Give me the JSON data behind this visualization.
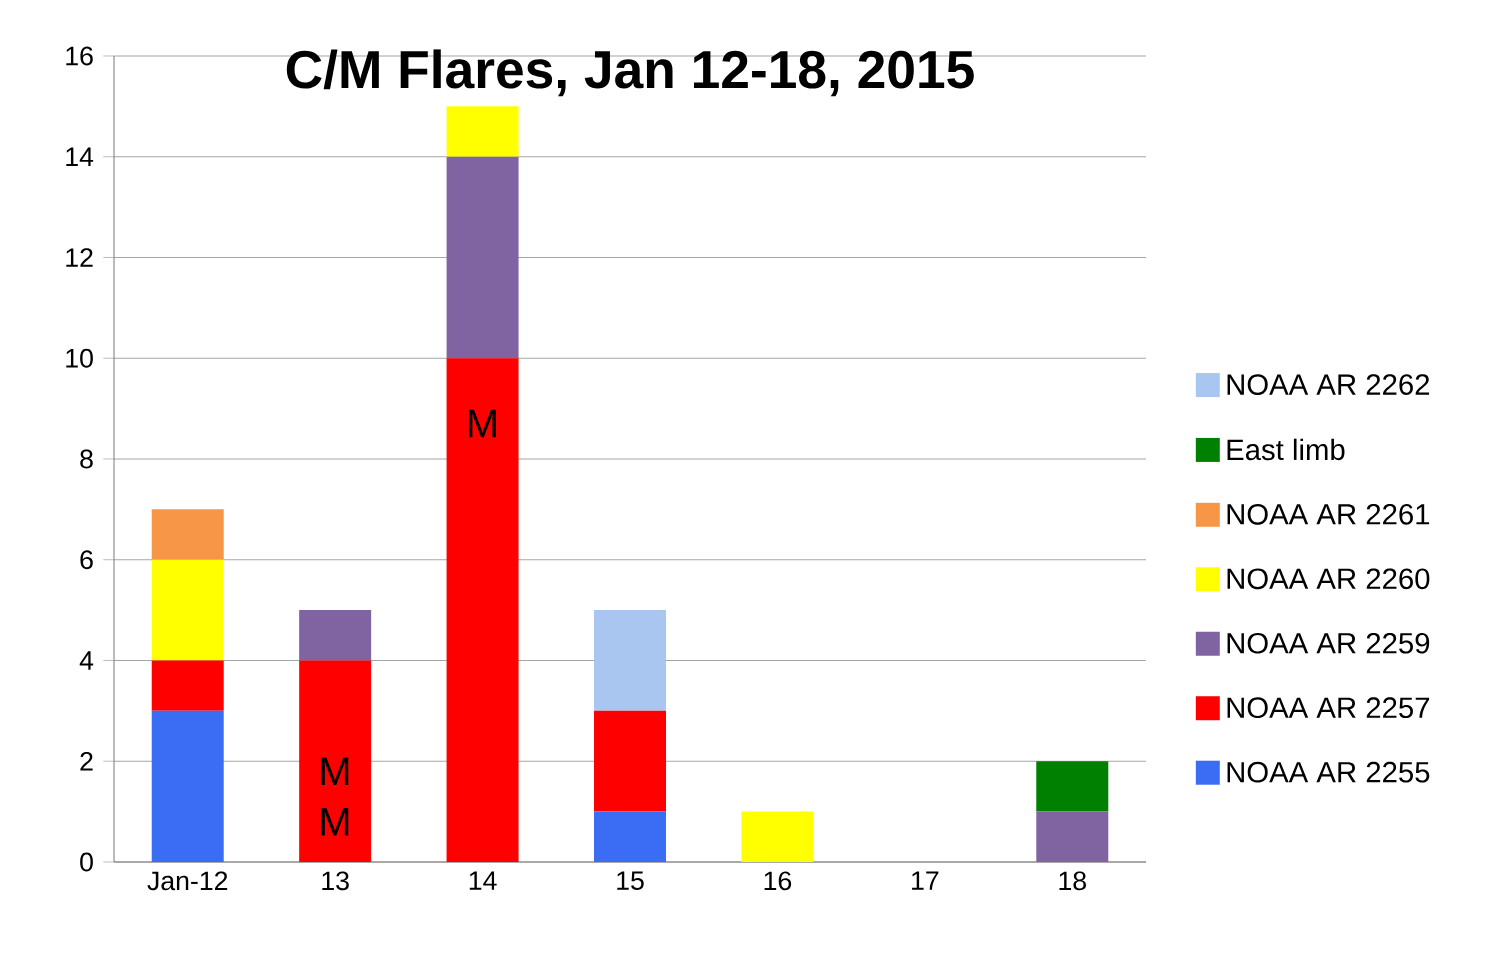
{
  "chart_data": {
    "type": "bar",
    "stacked": true,
    "title": "C/M Flares, Jan 12-18, 2015",
    "categories": [
      "Jan-12",
      "13",
      "14",
      "15",
      "16",
      "17",
      "18"
    ],
    "series": [
      {
        "name": "NOAA AR 2255",
        "color": "#3a6cf4",
        "values": [
          3,
          0,
          0,
          1,
          0,
          0,
          0
        ]
      },
      {
        "name": "NOAA AR 2257",
        "color": "#ff0000",
        "values": [
          1,
          4,
          10,
          2,
          0,
          0,
          0
        ]
      },
      {
        "name": "NOAA AR 2259",
        "color": "#8064a2",
        "values": [
          0,
          1,
          4,
          0,
          0,
          0,
          1
        ]
      },
      {
        "name": "NOAA AR 2260",
        "color": "#ffff00",
        "values": [
          2,
          0,
          1,
          0,
          1,
          0,
          0
        ]
      },
      {
        "name": "NOAA AR 2261",
        "color": "#f79646",
        "values": [
          1,
          0,
          0,
          0,
          0,
          0,
          0
        ]
      },
      {
        "name": "East limb",
        "color": "#008000",
        "values": [
          0,
          0,
          0,
          0,
          0,
          0,
          1
        ]
      },
      {
        "name": "NOAA AR 2262",
        "color": "#a9c6f0",
        "values": [
          0,
          0,
          0,
          2,
          0,
          0,
          0
        ]
      }
    ],
    "ylim": [
      0,
      16
    ],
    "yticks": [
      0,
      2,
      4,
      6,
      8,
      10,
      12,
      14,
      16
    ],
    "grid": "y",
    "legend": "right",
    "annotations": [
      "M",
      "M",
      "M"
    ]
  }
}
